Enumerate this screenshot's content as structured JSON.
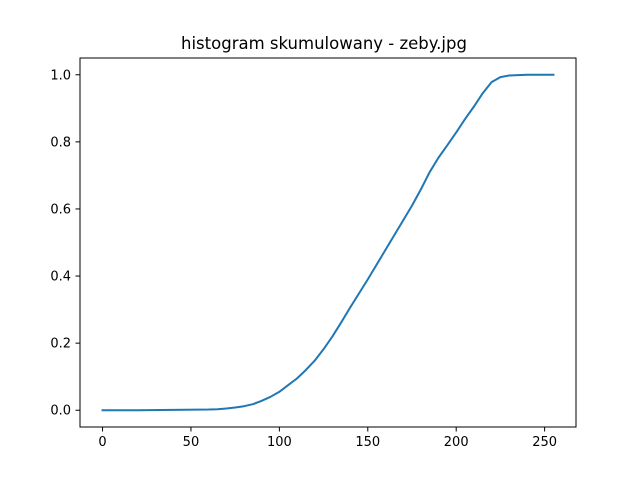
{
  "chart_data": {
    "type": "line",
    "title": "histogram skumulowany - zeby.jpg",
    "xlabel": "",
    "ylabel": "",
    "xlim": [
      -12.75,
      267.75
    ],
    "ylim": [
      -0.05,
      1.05
    ],
    "xticks": [
      0,
      50,
      100,
      150,
      200,
      250
    ],
    "yticks": [
      0.0,
      0.2,
      0.4,
      0.6,
      0.8,
      1.0
    ],
    "xtick_labels": [
      "0",
      "50",
      "100",
      "150",
      "200",
      "250"
    ],
    "ytick_labels": [
      "0.0",
      "0.2",
      "0.4",
      "0.6",
      "0.8",
      "1.0"
    ],
    "grid": false,
    "legend": "none",
    "series": [
      {
        "color": "#1f77b4",
        "x": [
          0,
          20,
          40,
          60,
          65,
          70,
          75,
          80,
          85,
          90,
          95,
          100,
          105,
          110,
          115,
          120,
          125,
          130,
          135,
          140,
          145,
          150,
          155,
          160,
          165,
          170,
          175,
          180,
          185,
          190,
          195,
          200,
          205,
          210,
          215,
          220,
          225,
          230,
          235,
          240,
          245,
          255
        ],
        "y": [
          0.0,
          0.0,
          0.001,
          0.002,
          0.003,
          0.005,
          0.008,
          0.012,
          0.018,
          0.028,
          0.04,
          0.055,
          0.075,
          0.095,
          0.12,
          0.148,
          0.182,
          0.22,
          0.262,
          0.306,
          0.348,
          0.39,
          0.434,
          0.478,
          0.522,
          0.566,
          0.61,
          0.658,
          0.71,
          0.753,
          0.79,
          0.828,
          0.868,
          0.905,
          0.945,
          0.978,
          0.993,
          0.998,
          0.999,
          1.0,
          1.0,
          1.0
        ]
      }
    ]
  }
}
